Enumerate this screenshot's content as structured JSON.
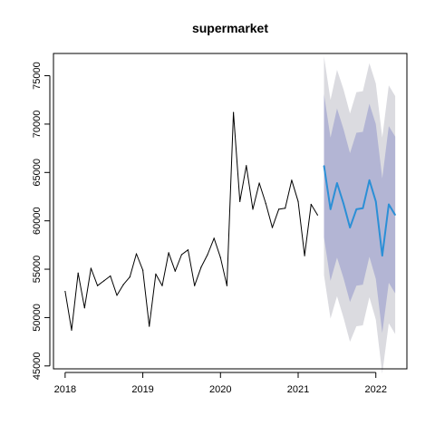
{
  "chart_data": {
    "type": "line",
    "title": "supermarket",
    "xlabel": "",
    "ylabel": "",
    "xlim": [
      2017.85,
      2022.4
    ],
    "ylim": [
      44700,
      77300
    ],
    "x_ticks": [
      2018,
      2019,
      2020,
      2021,
      2022
    ],
    "y_ticks": [
      45000,
      50000,
      55000,
      60000,
      65000,
      70000,
      75000
    ],
    "x_tick_labels": [
      "2018",
      "2019",
      "2020",
      "2021",
      "2022"
    ],
    "y_tick_labels": [
      "45000",
      "50000",
      "55000",
      "60000",
      "65000",
      "70000",
      "75000"
    ],
    "grid": false,
    "series": [
      {
        "role": "observed",
        "color": "#000000",
        "x": [
          2018.0,
          2018.083,
          2018.167,
          2018.25,
          2018.333,
          2018.417,
          2018.5,
          2018.583,
          2018.667,
          2018.75,
          2018.833,
          2018.917,
          2019.0,
          2019.083,
          2019.167,
          2019.25,
          2019.333,
          2019.417,
          2019.5,
          2019.583,
          2019.667,
          2019.75,
          2019.833,
          2019.917,
          2020.0,
          2020.083,
          2020.167,
          2020.25,
          2020.333,
          2020.417,
          2020.5,
          2020.583,
          2020.667,
          2020.75,
          2020.833,
          2020.917,
          2021.0,
          2021.083,
          2021.167,
          2021.25
        ],
        "y": [
          52700,
          48700,
          54600,
          51000,
          55100,
          53300,
          53800,
          54300,
          52300,
          53400,
          54200,
          56600,
          54900,
          49100,
          54500,
          53300,
          56700,
          54800,
          56500,
          57000,
          53300,
          55200,
          56500,
          58200,
          56200,
          53300,
          71200,
          62000,
          65700,
          61200,
          63900,
          61800,
          59300,
          61200,
          61300,
          64200,
          62000,
          56400,
          61700,
          60600
        ]
      },
      {
        "role": "forecast",
        "color": "#2b8fd6",
        "x": [
          2021.333,
          2021.417,
          2021.5,
          2021.583,
          2021.667,
          2021.75,
          2021.833,
          2021.917,
          2022.0,
          2022.083,
          2022.167,
          2022.25
        ],
        "y": [
          65700,
          61200,
          63900,
          61800,
          59300,
          61200,
          61300,
          64200,
          62000,
          56400,
          61700,
          60600
        ],
        "interval_80": {
          "color": "#b3b5d4",
          "lower": [
            58300,
            53800,
            56200,
            54100,
            51600,
            53300,
            53400,
            56300,
            54000,
            48400,
            53600,
            52500
          ],
          "upper": [
            73100,
            68600,
            71600,
            69500,
            67000,
            69100,
            69200,
            72100,
            70000,
            64400,
            69800,
            68700
          ]
        },
        "interval_95": {
          "color": "#dbdbe0",
          "lower": [
            54400,
            49900,
            52200,
            50000,
            47500,
            49100,
            49200,
            52100,
            49800,
            44200,
            49400,
            48300
          ],
          "upper": [
            77000,
            72500,
            75600,
            73600,
            71100,
            73300,
            73400,
            76300,
            74200,
            68600,
            74000,
            72900
          ]
        }
      }
    ]
  }
}
